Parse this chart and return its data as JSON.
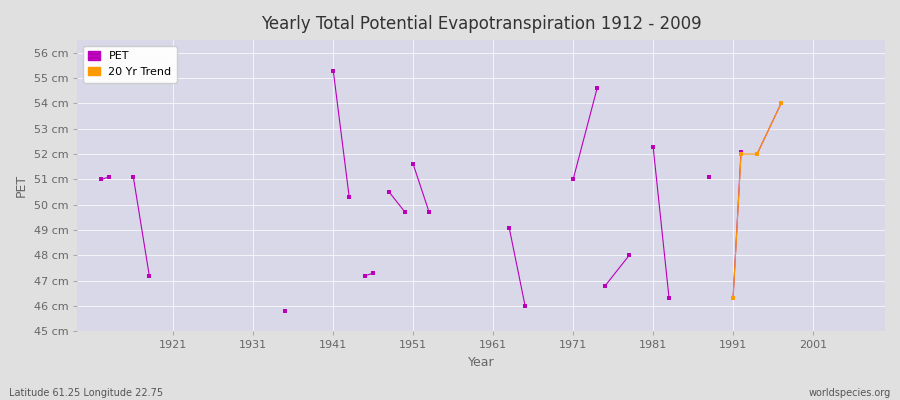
{
  "title": "Yearly Total Potential Evapotranspiration 1912 - 2009",
  "xlabel": "Year",
  "ylabel": "PET",
  "subtitle_left": "Latitude 61.25 Longitude 22.75",
  "subtitle_right": "worldspecies.org",
  "ylim": [
    45,
    56.5
  ],
  "xlim": [
    1909,
    2010
  ],
  "ytick_labels": [
    "45 cm",
    "46 cm",
    "47 cm",
    "48 cm",
    "49 cm",
    "50 cm",
    "51 cm",
    "52 cm",
    "53 cm",
    "54 cm",
    "55 cm",
    "56 cm"
  ],
  "ytick_values": [
    45,
    46,
    47,
    48,
    49,
    50,
    51,
    52,
    53,
    54,
    55,
    56
  ],
  "xtick_values": [
    1921,
    1931,
    1941,
    1951,
    1961,
    1971,
    1981,
    1991,
    2001
  ],
  "xtick_labels": [
    "1921",
    "1931",
    "1941",
    "1951",
    "1961",
    "1971",
    "1981",
    "1991",
    "2001"
  ],
  "pet_color": "#bb00bb",
  "trend_color": "#ff9900",
  "background_color": "#e0e0e0",
  "plot_bg_color": "#d8d8e8",
  "grid_color": "#ffffff",
  "pet_segments": [
    [
      [
        1912,
        51.0
      ],
      [
        1913,
        51.1
      ]
    ],
    [
      [
        1916,
        51.1
      ],
      [
        1918,
        47.2
      ]
    ],
    [
      [
        1935,
        45.8
      ]
    ],
    [
      [
        1941,
        55.3
      ],
      [
        1943,
        50.3
      ]
    ],
    [
      [
        1945,
        47.2
      ],
      [
        1946,
        47.3
      ]
    ],
    [
      [
        1948,
        50.5
      ],
      [
        1950,
        49.7
      ]
    ],
    [
      [
        1951,
        51.6
      ],
      [
        1953,
        49.7
      ]
    ],
    [
      [
        1963,
        49.1
      ],
      [
        1965,
        46.0
      ]
    ],
    [
      [
        1971,
        51.0
      ],
      [
        1974,
        54.6
      ]
    ],
    [
      [
        1975,
        46.8
      ],
      [
        1978,
        48.0
      ]
    ],
    [
      [
        1981,
        52.3
      ],
      [
        1983,
        46.3
      ]
    ],
    [
      [
        1988,
        51.1
      ]
    ],
    [
      [
        1991,
        46.3
      ],
      [
        1992,
        52.1
      ]
    ],
    [
      [
        1994,
        52.0
      ],
      [
        1997,
        54.0
      ]
    ]
  ],
  "trend_segments": [
    [
      [
        1991,
        46.3
      ],
      [
        1992,
        52.0
      ],
      [
        1994,
        52.0
      ],
      [
        1997,
        54.0
      ]
    ]
  ]
}
